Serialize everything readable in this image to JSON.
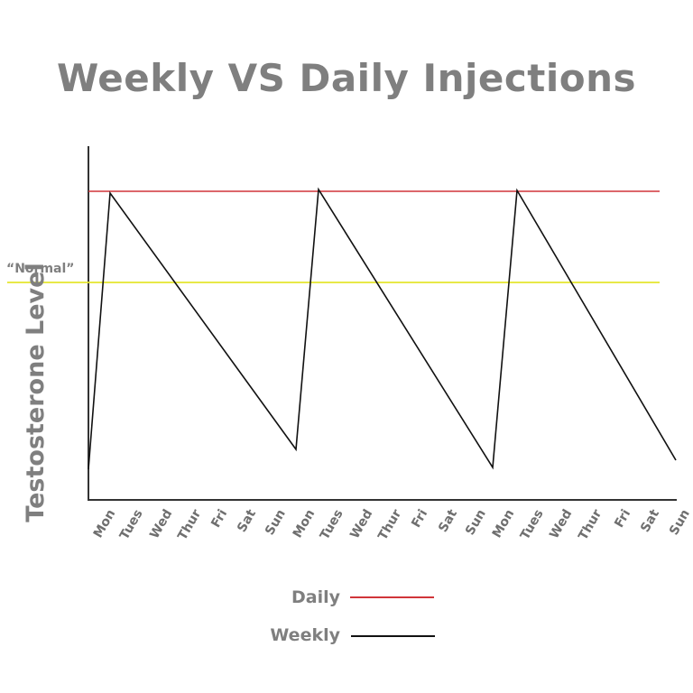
{
  "chart_data": {
    "type": "line",
    "title": "Weekly VS Daily Injections",
    "xlabel": "",
    "ylabel": "Testosterone Level",
    "categories": [
      "Mon",
      "Tues",
      "Wed",
      "Thur",
      "Fri",
      "Sat",
      "Sun",
      "Mon",
      "Tues",
      "Wed",
      "Thur",
      "Fri",
      "Sat",
      "Sun",
      "Mon",
      "Tues",
      "Wed",
      "Thur",
      "Fri",
      "Sat",
      "Sun"
    ],
    "reference_lines": [
      {
        "name": "“Normal”",
        "color": "#e4e62e",
        "level": 0.62
      }
    ],
    "series": [
      {
        "name": "Daily",
        "color": "#d0353a",
        "description": "constant high level",
        "values": [
          0.88,
          0.88,
          0.88,
          0.88,
          0.88,
          0.88,
          0.88,
          0.88,
          0.88,
          0.88,
          0.88,
          0.88,
          0.88,
          0.88,
          0.88,
          0.88,
          0.88,
          0.88,
          0.88,
          0.88,
          0.88
        ]
      },
      {
        "name": "Weekly",
        "color": "#111111",
        "description": "sawtooth: peaks after each Mon injection, declines through the week",
        "points": [
          {
            "x": 0,
            "y": 0.09
          },
          {
            "x": 0.8,
            "y": 0.87
          },
          {
            "x": 7.0,
            "y": 0.14
          },
          {
            "x": 7.8,
            "y": 0.88
          },
          {
            "x": 14.0,
            "y": 0.09
          },
          {
            "x": 14.8,
            "y": 0.88
          },
          {
            "x": 20.0,
            "y": 0.11
          }
        ]
      }
    ],
    "ylim": [
      0,
      1
    ],
    "grid": false,
    "legend_position": "bottom-center"
  },
  "title": "Weekly VS Daily Injections",
  "y_axis_label": "Testosterone Level",
  "normal_label": "“Normal”",
  "legend": {
    "daily": "Daily",
    "weekly": "Weekly"
  },
  "x_ticks": [
    "Mon",
    "Tues",
    "Wed",
    "Thur",
    "Fri",
    "Sat",
    "Sun",
    "Mon",
    "Tues",
    "Wed",
    "Thur",
    "Fri",
    "Sat",
    "Sun",
    "Mon",
    "Tues",
    "Wed",
    "Thur",
    "Fri",
    "Sat",
    "Sun"
  ],
  "colors": {
    "daily": "#d0353a",
    "weekly": "#111111",
    "normal": "#e4e62e",
    "text": "#7f7f7f"
  }
}
